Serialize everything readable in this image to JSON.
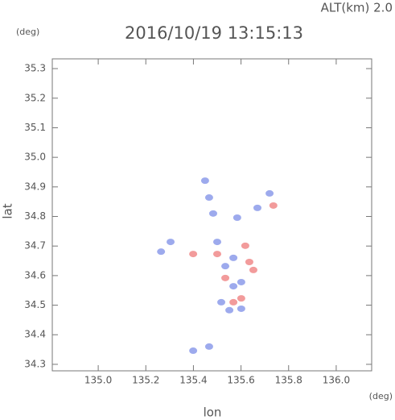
{
  "chart_data": {
    "type": "scatter",
    "title": "2016/10/19 13:15:13",
    "annotation": "ALT(km) 2.0",
    "x_label": "lon",
    "y_label": "lat",
    "x_unit": "(deg)",
    "y_unit": "(deg)",
    "xlim": [
      134.807,
      136.149
    ],
    "ylim": [
      34.278,
      35.333
    ],
    "xticks": [
      {
        "value": 135.0,
        "label": "135.0"
      },
      135.2,
      135.4,
      135.6,
      135.8,
      {
        "value": 136.0,
        "label": "136.0"
      }
    ],
    "yticks": [
      34.3,
      34.4,
      34.5,
      34.6,
      34.7,
      34.8,
      34.9,
      {
        "value": 35.0,
        "label": "35.0"
      },
      35.1,
      35.2,
      35.3
    ],
    "series": [
      {
        "color": "#8c9bea",
        "x": [
          135.304,
          135.264,
          135.449,
          135.466,
          135.483,
          135.584,
          135.72,
          135.669,
          135.534,
          135.568,
          135.601,
          135.517,
          135.551,
          135.601,
          135.466,
          135.399,
          135.5,
          135.568
        ],
        "values": [
          34.714,
          34.681,
          34.921,
          34.864,
          34.81,
          34.796,
          34.878,
          34.829,
          34.632,
          34.564,
          34.578,
          34.51,
          34.483,
          34.488,
          34.36,
          34.346,
          34.714,
          34.66
        ]
      },
      {
        "color": "#f08a8a",
        "x": [
          135.618,
          135.635,
          135.5,
          135.601,
          135.399,
          135.736,
          135.652,
          135.568,
          135.534
        ],
        "values": [
          34.701,
          34.646,
          34.673,
          34.523,
          34.673,
          34.837,
          34.619,
          34.51,
          34.592
        ]
      }
    ]
  }
}
